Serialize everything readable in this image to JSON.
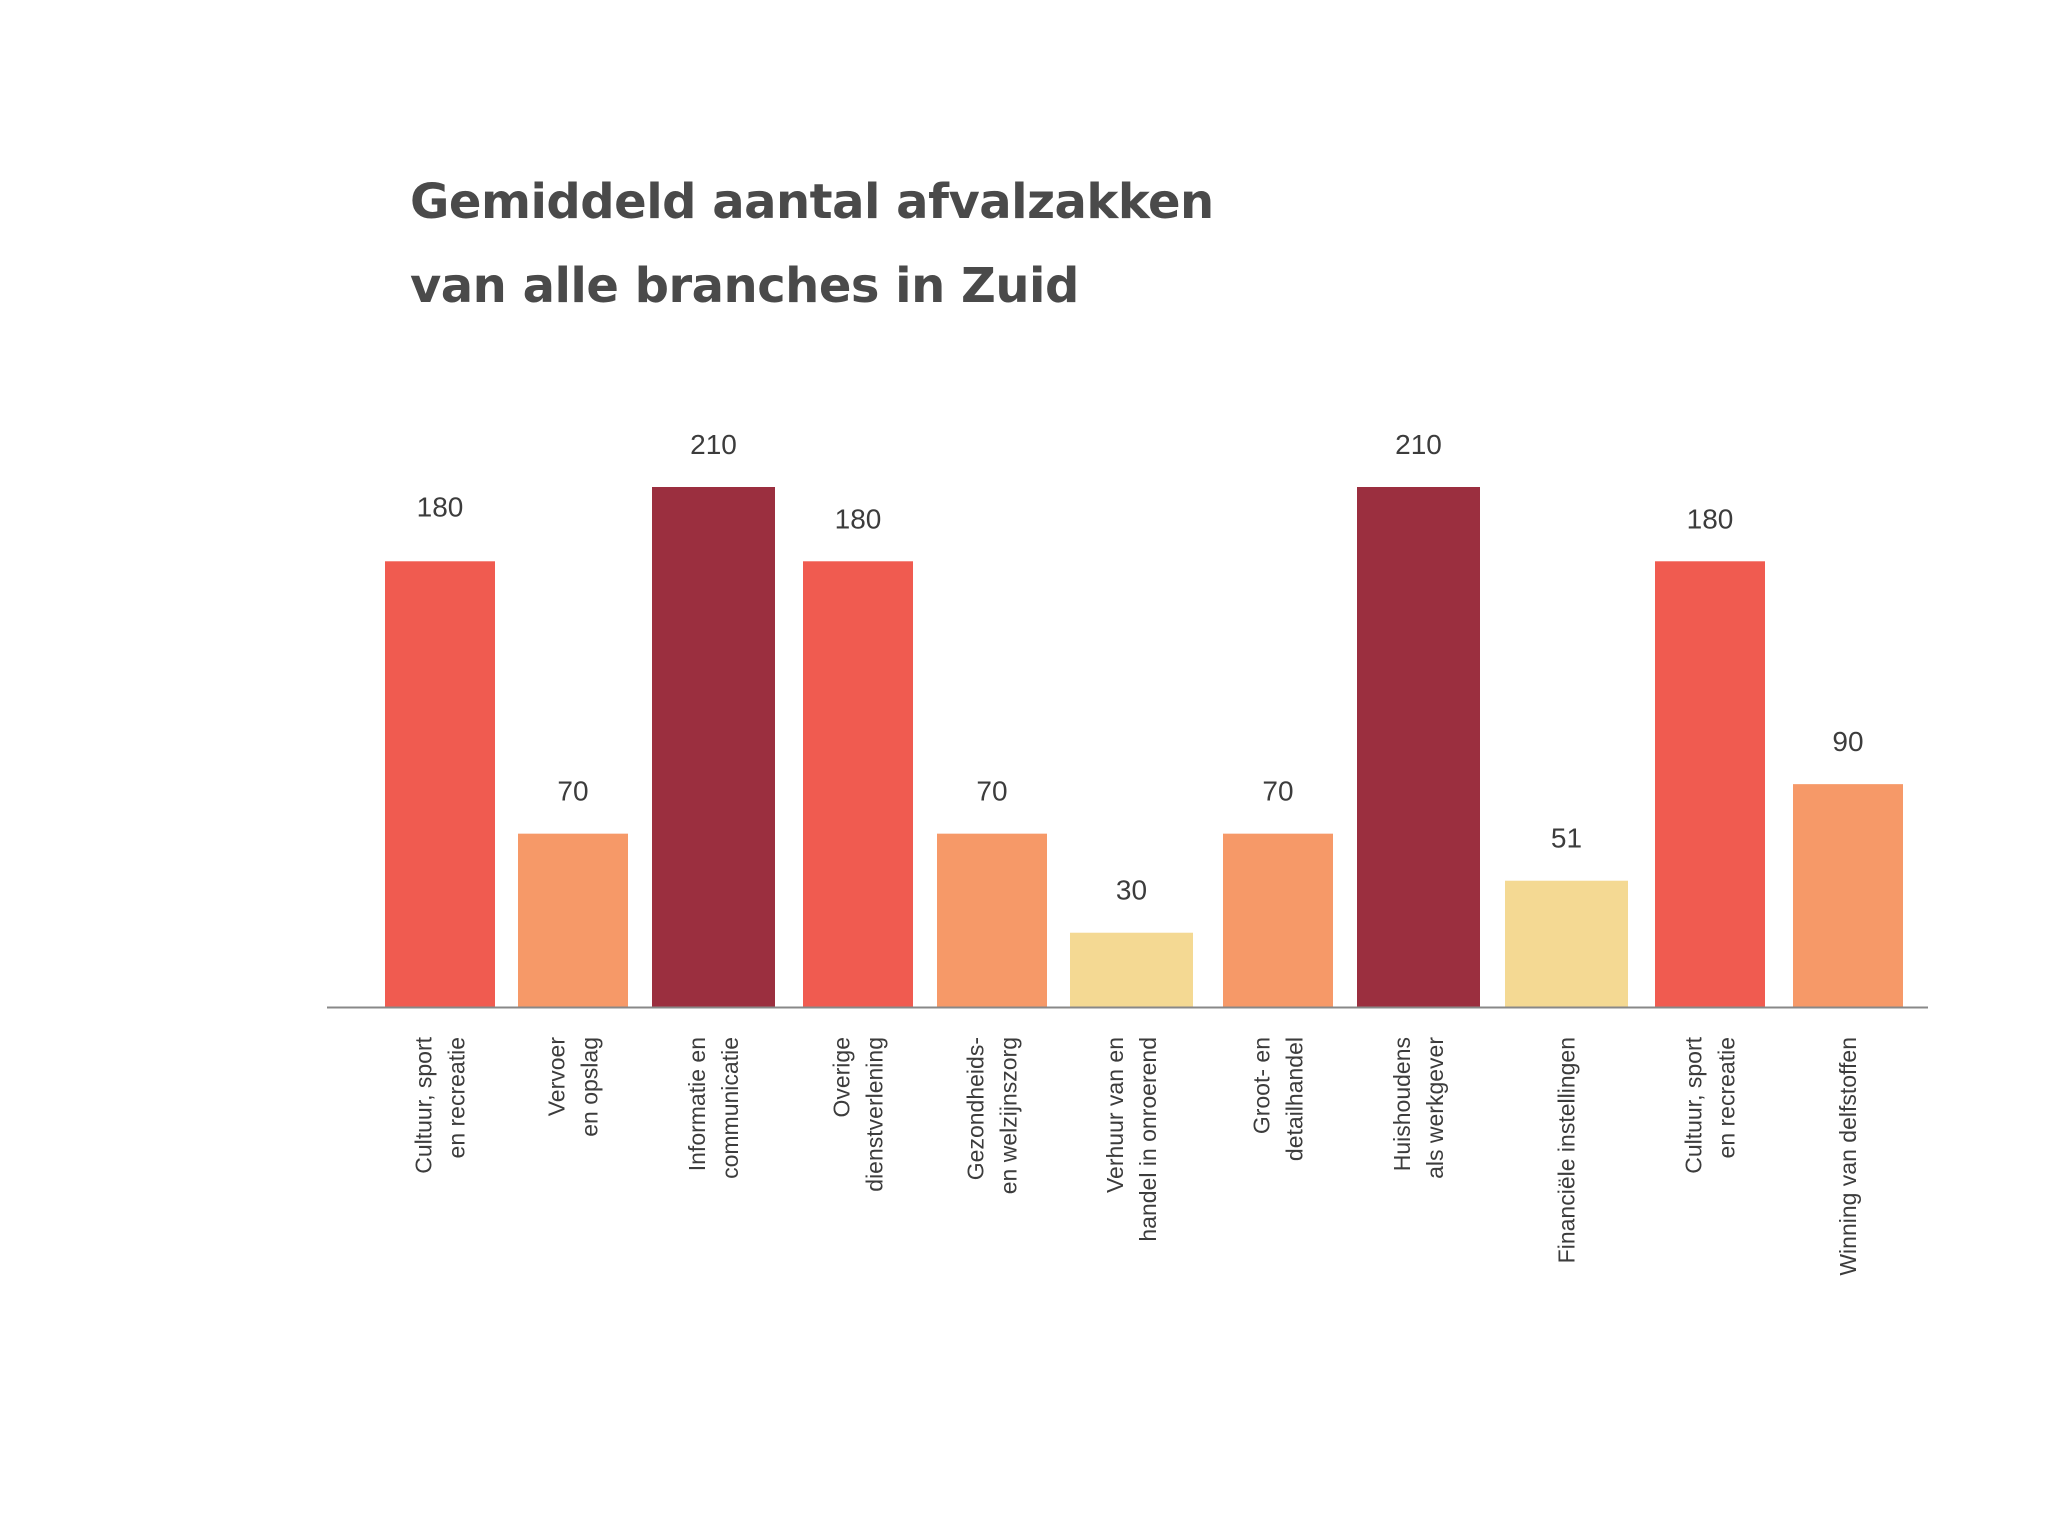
{
  "chart_data": {
    "type": "bar",
    "title_lines": [
      "Gemiddeld aantal afvalzakken",
      "van alle branches in Zuid"
    ],
    "xlabel": "",
    "ylabel": "",
    "ylim": [
      0,
      210
    ],
    "grid": false,
    "legend": "none",
    "categories": [
      [
        "Cultuur, sport",
        "en recreatie"
      ],
      [
        "Vervoer",
        "en opslag"
      ],
      [
        "Informatie en",
        "communicatie"
      ],
      [
        "Overige",
        "dienstverlening"
      ],
      [
        "Gezondheids-",
        "en welzijnszorg"
      ],
      [
        "Verhuur van en",
        "handel in onroerend"
      ],
      [
        "Groot- en",
        "detailhandel"
      ],
      [
        "Huishoudens",
        "als werkgever"
      ],
      [
        "Financiële instellingen"
      ],
      [
        "Cultuur, sport",
        "en recreatie"
      ],
      [
        "Winning van delfstoffen"
      ]
    ],
    "values": [
      180,
      70,
      210,
      180,
      70,
      30,
      70,
      210,
      51,
      180,
      90
    ],
    "value_labels": [
      "180",
      "70",
      "210",
      "180",
      "70",
      "30",
      "70",
      "210",
      "51",
      "180",
      "90"
    ],
    "bar_colors": [
      "#f05b50",
      "#f69968",
      "#9b2f3f",
      "#f05b50",
      "#f69968",
      "#f4d993",
      "#f69968",
      "#9b2f3f",
      "#f4d993",
      "#f05b50",
      "#f69968"
    ],
    "axis_color": "#888888"
  }
}
